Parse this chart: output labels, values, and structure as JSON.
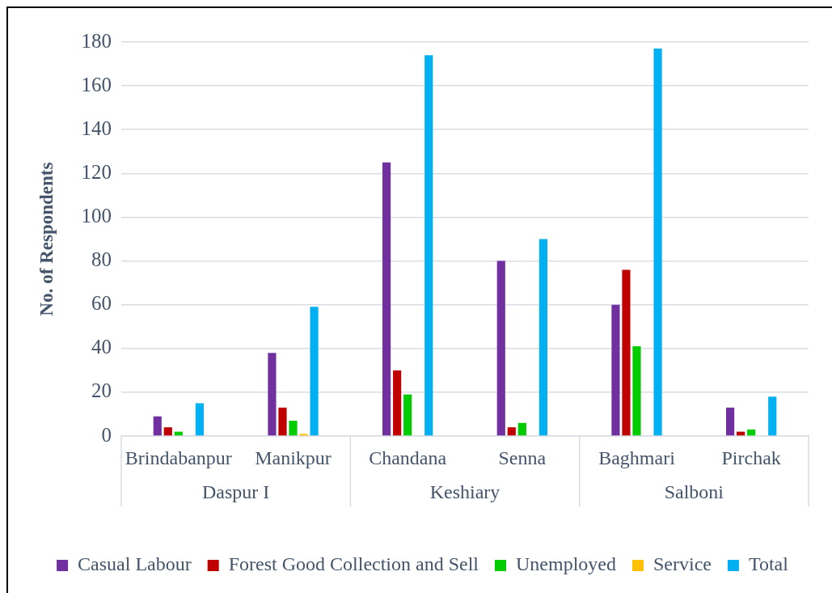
{
  "chart_data": {
    "type": "bar",
    "ylabel": "No. of Respondents",
    "categories": [
      "Brindabanpur",
      "Manikpur",
      "Chandana",
      "Senna",
      "Baghmari",
      "Pirchak"
    ],
    "series": [
      {
        "name": "Casual Labour",
        "color": "#7030a0",
        "values": [
          9,
          38,
          125,
          80,
          60,
          13
        ]
      },
      {
        "name": "Forest Good Collection and Sell",
        "color": "#c00000",
        "values": [
          4,
          13,
          30,
          4,
          76,
          2
        ]
      },
      {
        "name": "Unemployed",
        "color": "#00cc00",
        "values": [
          2,
          7,
          19,
          6,
          41,
          3
        ]
      },
      {
        "name": "Service",
        "color": "#ffc000",
        "values": [
          0,
          1,
          0,
          0,
          0,
          0
        ]
      },
      {
        "name": "Total",
        "color": "#00b0f0",
        "values": [
          15,
          59,
          174,
          90,
          177,
          18
        ]
      }
    ],
    "ylim": [
      0,
      180
    ],
    "yticks": [
      0,
      20,
      40,
      60,
      80,
      100,
      120,
      140,
      160,
      180
    ],
    "grid": "y",
    "legend": "bottom",
    "annotations": [
      "Daspur I",
      "Keshiary",
      "Salboni"
    ]
  }
}
